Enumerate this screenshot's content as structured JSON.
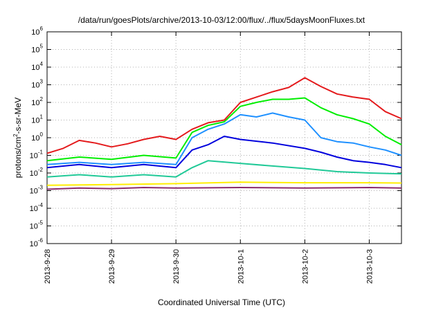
{
  "chart_data": {
    "type": "line",
    "title": "/data/run/goesPlots/archive/2013-10-03/12:00/flux/../flux/5daysMoonFluxes.txt",
    "xlabel": "Coordinated Universal Time (UTC)",
    "ylabel": "protons/cm²-s-sr-MeV",
    "yscale": "log",
    "ylim": [
      1e-06,
      1000000.0
    ],
    "xlim": [
      "2013-09-28",
      "2013-10-03T12:00"
    ],
    "x_ticks": [
      "2013-9-28",
      "2013-9-29",
      "2013-9-30",
      "2013-10-1",
      "2013-10-2",
      "2013-10-3"
    ],
    "y_ticks": [
      {
        "value": 1e-06,
        "base": "10",
        "exp": "-6"
      },
      {
        "value": 1e-05,
        "base": "10",
        "exp": "-5"
      },
      {
        "value": 0.0001,
        "base": "10",
        "exp": "-4"
      },
      {
        "value": 0.001,
        "base": "10",
        "exp": "-3"
      },
      {
        "value": 0.01,
        "base": "10",
        "exp": "-2"
      },
      {
        "value": 0.1,
        "base": "10",
        "exp": "-1"
      },
      {
        "value": 1.0,
        "base": "10",
        "exp": "0"
      },
      {
        "value": 10.0,
        "base": "10",
        "exp": "1"
      },
      {
        "value": 100.0,
        "base": "10",
        "exp": "2"
      },
      {
        "value": 1000.0,
        "base": "10",
        "exp": "3"
      },
      {
        "value": 10000.0,
        "base": "10",
        "exp": "4"
      },
      {
        "value": 100000.0,
        "base": "10",
        "exp": "5"
      },
      {
        "value": 1000000.0,
        "base": "10",
        "exp": "6"
      }
    ],
    "grid": true,
    "series": [
      {
        "color": "#e41a1c",
        "points": [
          [
            "2013-09-28T00:00",
            0.13
          ],
          [
            "2013-09-28T06:00",
            0.25
          ],
          [
            "2013-09-28T12:00",
            0.7
          ],
          [
            "2013-09-28T18:00",
            0.5
          ],
          [
            "2013-09-29T00:00",
            0.3
          ],
          [
            "2013-09-29T06:00",
            0.45
          ],
          [
            "2013-09-29T12:00",
            0.8
          ],
          [
            "2013-09-29T18:00",
            1.2
          ],
          [
            "2013-09-30T00:00",
            0.8
          ],
          [
            "2013-09-30T06:00",
            3
          ],
          [
            "2013-09-30T12:00",
            7
          ],
          [
            "2013-09-30T18:00",
            10
          ],
          [
            "2013-10-01T00:00",
            100
          ],
          [
            "2013-10-01T06:00",
            200
          ],
          [
            "2013-10-01T12:00",
            400
          ],
          [
            "2013-10-01T18:00",
            700
          ],
          [
            "2013-10-02T00:00",
            2500
          ],
          [
            "2013-10-02T06:00",
            800
          ],
          [
            "2013-10-02T12:00",
            300
          ],
          [
            "2013-10-02T18:00",
            200
          ],
          [
            "2013-10-03T00:00",
            150
          ],
          [
            "2013-10-03T06:00",
            30
          ],
          [
            "2013-10-03T12:00",
            12
          ]
        ]
      },
      {
        "color": "#00ee00",
        "points": [
          [
            "2013-09-28T00:00",
            0.05
          ],
          [
            "2013-09-28T12:00",
            0.08
          ],
          [
            "2013-09-29T00:00",
            0.06
          ],
          [
            "2013-09-29T12:00",
            0.1
          ],
          [
            "2013-09-30T00:00",
            0.07
          ],
          [
            "2013-09-30T06:00",
            2
          ],
          [
            "2013-09-30T12:00",
            5
          ],
          [
            "2013-09-30T18:00",
            8
          ],
          [
            "2013-10-01T00:00",
            60
          ],
          [
            "2013-10-01T06:00",
            100
          ],
          [
            "2013-10-01T12:00",
            150
          ],
          [
            "2013-10-01T18:00",
            150
          ],
          [
            "2013-10-02T00:00",
            180
          ],
          [
            "2013-10-02T06:00",
            50
          ],
          [
            "2013-10-02T12:00",
            20
          ],
          [
            "2013-10-02T18:00",
            12
          ],
          [
            "2013-10-03T00:00",
            6
          ],
          [
            "2013-10-03T06:00",
            1.2
          ],
          [
            "2013-10-03T12:00",
            0.4
          ]
        ]
      },
      {
        "color": "#1e90ff",
        "points": [
          [
            "2013-09-28T00:00",
            0.03
          ],
          [
            "2013-09-28T12:00",
            0.04
          ],
          [
            "2013-09-29T00:00",
            0.03
          ],
          [
            "2013-09-29T12:00",
            0.04
          ],
          [
            "2013-09-30T00:00",
            0.03
          ],
          [
            "2013-09-30T06:00",
            1
          ],
          [
            "2013-09-30T12:00",
            3
          ],
          [
            "2013-09-30T18:00",
            6
          ],
          [
            "2013-10-01T00:00",
            20
          ],
          [
            "2013-10-01T06:00",
            15
          ],
          [
            "2013-10-01T12:00",
            25
          ],
          [
            "2013-10-01T18:00",
            15
          ],
          [
            "2013-10-02T00:00",
            10
          ],
          [
            "2013-10-02T06:00",
            1
          ],
          [
            "2013-10-02T12:00",
            0.6
          ],
          [
            "2013-10-02T18:00",
            0.5
          ],
          [
            "2013-10-03T00:00",
            0.3
          ],
          [
            "2013-10-03T06:00",
            0.2
          ],
          [
            "2013-10-03T12:00",
            0.1
          ]
        ]
      },
      {
        "color": "#0000dd",
        "points": [
          [
            "2013-09-28T00:00",
            0.02
          ],
          [
            "2013-09-28T12:00",
            0.03
          ],
          [
            "2013-09-29T00:00",
            0.02
          ],
          [
            "2013-09-29T12:00",
            0.03
          ],
          [
            "2013-09-30T00:00",
            0.02
          ],
          [
            "2013-09-30T06:00",
            0.2
          ],
          [
            "2013-09-30T12:00",
            0.4
          ],
          [
            "2013-09-30T18:00",
            1.2
          ],
          [
            "2013-10-01T00:00",
            0.8
          ],
          [
            "2013-10-01T12:00",
            0.5
          ],
          [
            "2013-10-02T00:00",
            0.25
          ],
          [
            "2013-10-02T06:00",
            0.15
          ],
          [
            "2013-10-02T12:00",
            0.08
          ],
          [
            "2013-10-02T18:00",
            0.05
          ],
          [
            "2013-10-03T00:00",
            0.04
          ],
          [
            "2013-10-03T06:00",
            0.03
          ],
          [
            "2013-10-03T12:00",
            0.02
          ]
        ]
      },
      {
        "color": "#20c997",
        "points": [
          [
            "2013-09-28T00:00",
            0.006
          ],
          [
            "2013-09-28T12:00",
            0.008
          ],
          [
            "2013-09-29T00:00",
            0.006
          ],
          [
            "2013-09-29T12:00",
            0.008
          ],
          [
            "2013-09-30T00:00",
            0.006
          ],
          [
            "2013-09-30T06:00",
            0.02
          ],
          [
            "2013-09-30T12:00",
            0.05
          ],
          [
            "2013-10-01T00:00",
            0.035
          ],
          [
            "2013-10-01T12:00",
            0.025
          ],
          [
            "2013-10-02T00:00",
            0.018
          ],
          [
            "2013-10-02T12:00",
            0.012
          ],
          [
            "2013-10-03T00:00",
            0.01
          ],
          [
            "2013-10-03T12:00",
            0.009
          ]
        ]
      },
      {
        "color": "#ffee00",
        "points": [
          [
            "2013-09-28T00:00",
            0.002
          ],
          [
            "2013-09-29T00:00",
            0.0022
          ],
          [
            "2013-09-30T00:00",
            0.0025
          ],
          [
            "2013-10-01T00:00",
            0.003
          ],
          [
            "2013-10-02T00:00",
            0.0028
          ],
          [
            "2013-10-03T00:00",
            0.0028
          ],
          [
            "2013-10-03T12:00",
            0.0027
          ]
        ]
      },
      {
        "color": "#8b2a6b",
        "points": [
          [
            "2013-09-28T00:00",
            0.0012
          ],
          [
            "2013-09-28T12:00",
            0.0014
          ],
          [
            "2013-09-29T00:00",
            0.0013
          ],
          [
            "2013-09-29T12:00",
            0.0015
          ],
          [
            "2013-09-30T00:00",
            0.0014
          ],
          [
            "2013-10-01T00:00",
            0.0015
          ],
          [
            "2013-10-02T00:00",
            0.0014
          ],
          [
            "2013-10-03T00:00",
            0.0015
          ],
          [
            "2013-10-03T12:00",
            0.0014
          ]
        ]
      }
    ]
  }
}
